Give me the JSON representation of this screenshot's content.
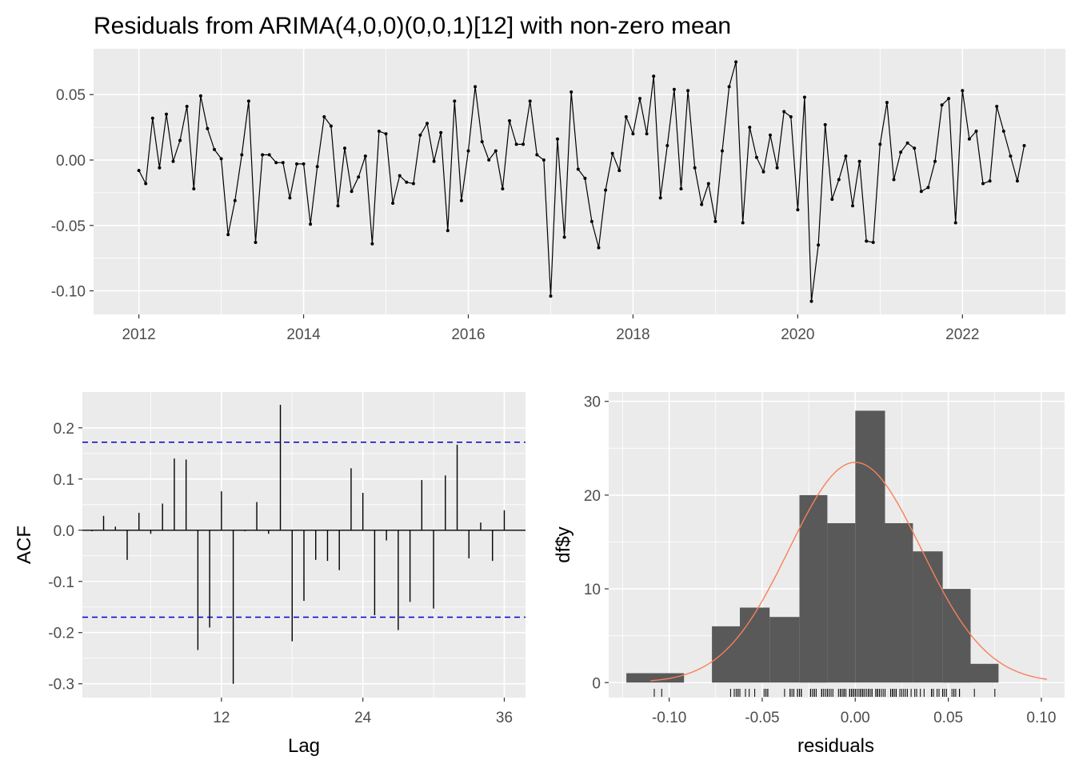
{
  "chart_data": [
    {
      "type": "line",
      "title": "Residuals from ARIMA(4,0,0)(0,0,1)[12] with non-zero mean",
      "xlabel": "",
      "ylabel": "",
      "x_ticks": [
        "2012",
        "2014",
        "2016",
        "2018",
        "2020",
        "2022"
      ],
      "y_ticks": [
        "0.05",
        "0.00",
        "-0.05",
        "-0.10"
      ],
      "y_tick_values": [
        0.05,
        0.0,
        -0.05,
        -0.1
      ],
      "xlim": [
        2011.45,
        2023.25
      ],
      "ylim": [
        -0.118,
        0.085
      ],
      "grid": true,
      "points": true,
      "start_year": 2012,
      "frequency": 12,
      "values": [
        -0.008,
        -0.018,
        0.032,
        -0.006,
        0.035,
        -0.001,
        0.015,
        0.041,
        -0.022,
        0.049,
        0.024,
        0.008,
        0.001,
        -0.057,
        -0.031,
        0.004,
        0.045,
        -0.063,
        0.004,
        0.004,
        -0.002,
        -0.002,
        -0.029,
        -0.003,
        -0.003,
        -0.049,
        -0.005,
        0.033,
        0.026,
        -0.035,
        0.009,
        -0.024,
        -0.013,
        0.003,
        -0.064,
        0.022,
        0.02,
        -0.033,
        -0.012,
        -0.017,
        -0.018,
        0.019,
        0.028,
        -0.001,
        0.021,
        -0.054,
        0.045,
        -0.031,
        0.007,
        0.056,
        0.014,
        0.0,
        0.007,
        -0.022,
        0.03,
        0.012,
        0.012,
        0.045,
        0.004,
        0.0,
        -0.104,
        0.016,
        -0.059,
        0.052,
        -0.007,
        -0.014,
        -0.047,
        -0.067,
        -0.023,
        0.005,
        -0.008,
        0.033,
        0.02,
        0.047,
        0.02,
        0.064,
        -0.029,
        0.011,
        0.054,
        -0.022,
        0.053,
        -0.006,
        -0.034,
        -0.018,
        -0.047,
        0.007,
        0.056,
        0.075,
        -0.048,
        0.025,
        0.002,
        -0.009,
        0.019,
        -0.006,
        0.037,
        0.033,
        -0.038,
        0.048,
        -0.108,
        -0.065,
        0.027,
        -0.03,
        -0.015,
        0.003,
        -0.035,
        -0.001,
        -0.062,
        -0.063,
        0.012,
        0.044,
        -0.015,
        0.006,
        0.013,
        0.009,
        -0.024,
        -0.021,
        -0.001,
        0.042,
        0.047,
        -0.048,
        0.053,
        0.016,
        0.022,
        -0.018,
        -0.016,
        0.041,
        0.022,
        0.003,
        -0.016,
        0.011
      ]
    },
    {
      "type": "bar",
      "xlabel": "Lag",
      "ylabel": "ACF",
      "x_ticks": [
        "12",
        "24",
        "36"
      ],
      "x_tick_values": [
        12,
        24,
        36
      ],
      "y_ticks": [
        "0.2",
        "0.1",
        "0.0",
        "-0.1",
        "-0.2",
        "-0.3"
      ],
      "y_tick_values": [
        0.2,
        0.1,
        0.0,
        -0.1,
        -0.2,
        -0.3
      ],
      "xlim": [
        0.2,
        37.8
      ],
      "ylim": [
        -0.327,
        0.27
      ],
      "grid": true,
      "confidence_bounds": [
        0.172,
        -0.17
      ],
      "bound_color": "#0000cc",
      "lags": [
        1,
        2,
        3,
        4,
        5,
        6,
        7,
        8,
        9,
        10,
        11,
        12,
        13,
        14,
        15,
        16,
        17,
        18,
        19,
        20,
        21,
        22,
        23,
        24,
        25,
        26,
        27,
        28,
        29,
        30,
        31,
        32,
        33,
        34,
        35,
        36
      ],
      "values": [
        -0.002,
        0.028,
        0.007,
        -0.058,
        0.034,
        -0.007,
        0.052,
        0.14,
        0.138,
        -0.234,
        -0.19,
        0.076,
        -0.3,
        -0.002,
        0.055,
        -0.007,
        0.245,
        -0.217,
        -0.138,
        -0.058,
        -0.06,
        -0.078,
        0.121,
        0.073,
        -0.166,
        -0.02,
        -0.195,
        -0.14,
        0.098,
        -0.153,
        0.107,
        0.167,
        -0.055,
        0.015,
        -0.06,
        0.039
      ]
    },
    {
      "type": "bar",
      "subtype": "histogram with density curve and rug",
      "xlabel": "residuals",
      "ylabel": "df$y",
      "x_ticks": [
        "-0.10",
        "-0.05",
        "0.00",
        "0.05",
        "0.10"
      ],
      "x_tick_values": [
        -0.1,
        -0.05,
        0.0,
        0.05,
        0.1
      ],
      "y_ticks": [
        "30",
        "20",
        "10",
        "0"
      ],
      "y_tick_values": [
        30,
        20,
        10,
        0
      ],
      "xlim": [
        -0.1325,
        0.1125
      ],
      "ylim": [
        -1.6,
        31
      ],
      "grid": true,
      "bar_color": "#595959",
      "curve_color": "#f8805a",
      "bins": [
        {
          "start": -0.123,
          "end": -0.092,
          "count": 1
        },
        {
          "start": -0.092,
          "end": -0.077,
          "count": 0
        },
        {
          "start": -0.077,
          "end": -0.062,
          "count": 6
        },
        {
          "start": -0.062,
          "end": -0.046,
          "count": 8
        },
        {
          "start": -0.046,
          "end": -0.03,
          "count": 7
        },
        {
          "start": -0.03,
          "end": -0.015,
          "count": 20
        },
        {
          "start": -0.015,
          "end": 0.0,
          "count": 17
        },
        {
          "start": 0.0,
          "end": 0.016,
          "count": 29
        },
        {
          "start": 0.016,
          "end": 0.031,
          "count": 17
        },
        {
          "start": 0.031,
          "end": 0.047,
          "count": 14
        },
        {
          "start": 0.047,
          "end": 0.062,
          "count": 10
        },
        {
          "start": 0.062,
          "end": 0.077,
          "count": 2
        }
      ],
      "density_curve": {
        "mean": 0.0,
        "sd": 0.0355,
        "peak": 23.5,
        "from": -0.11,
        "to": 0.103
      }
    }
  ]
}
